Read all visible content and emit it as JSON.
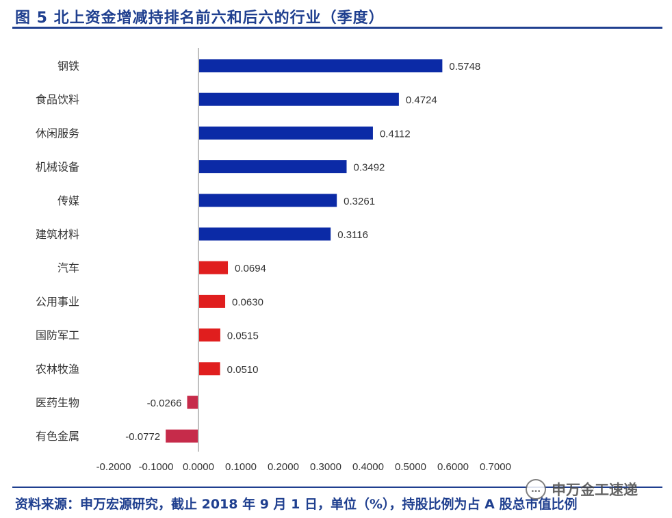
{
  "title": "图 5  北上资金增减持排名前六和后六的行业（季度）",
  "source": "资料来源：申万宏源研究，截止 2018 年 9 月 1 日，单位（%），持股比例为占 A 股总市值比例",
  "watermark": {
    "icon": "chat-bubble-icon",
    "text": "申万金工速递"
  },
  "colors": {
    "positive_top": "#0b2aa6",
    "positive_rest": "#e01e1e",
    "negative": "#c62b4a",
    "axis": "#bfbfbf",
    "text": "#333333"
  },
  "chart_data": {
    "type": "bar",
    "orientation": "horizontal",
    "categories": [
      "钢铁",
      "食品饮料",
      "休闲服务",
      "机械设备",
      "传媒",
      "建筑材料",
      "汽车",
      "公用事业",
      "国防军工",
      "农林牧渔",
      "医药生物",
      "有色金属"
    ],
    "values": [
      0.5748,
      0.4724,
      0.4112,
      0.3492,
      0.3261,
      0.3116,
      0.0694,
      0.063,
      0.0515,
      0.051,
      -0.0266,
      -0.0772
    ],
    "value_labels": [
      "0.5748",
      "0.4724",
      "0.4112",
      "0.3492",
      "0.3261",
      "0.3116",
      "0.0694",
      "0.0630",
      "0.0515",
      "0.0510",
      "-0.0266",
      "-0.0772"
    ],
    "bar_colors": [
      "#0b2aa6",
      "#0b2aa6",
      "#0b2aa6",
      "#0b2aa6",
      "#0b2aa6",
      "#0b2aa6",
      "#e01e1e",
      "#e01e1e",
      "#e01e1e",
      "#e01e1e",
      "#c62b4a",
      "#c62b4a"
    ],
    "xlim": [
      -0.2,
      0.7
    ],
    "xticks": [
      -0.2,
      -0.1,
      0.0,
      0.1,
      0.2,
      0.3,
      0.4,
      0.5,
      0.6,
      0.7
    ],
    "xtick_labels": [
      "-0.2000",
      "-0.1000",
      "0.0000",
      "0.1000",
      "0.2000",
      "0.3000",
      "0.4000",
      "0.5000",
      "0.6000",
      "0.7000"
    ],
    "xlabel": "",
    "ylabel": "",
    "grid": false,
    "legend": "none"
  }
}
